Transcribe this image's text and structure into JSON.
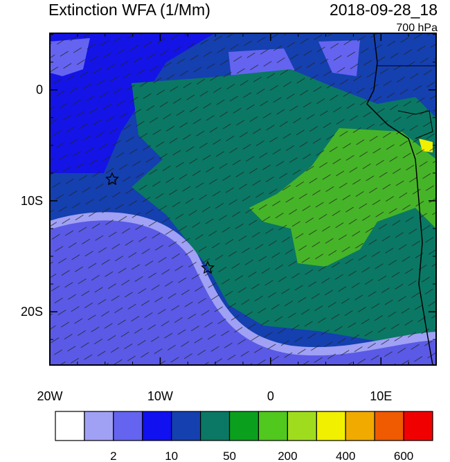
{
  "header": {
    "title": "Extinction WFA (1/Mm)",
    "time": "2018-09-28_18",
    "level": "700 hPa"
  },
  "map": {
    "lon_range": [
      -20,
      15
    ],
    "lat_range": [
      5.1,
      -24.8
    ],
    "lon_ticks": [
      {
        "value": -20,
        "label": "20W"
      },
      {
        "value": -10,
        "label": "10W"
      },
      {
        "value": 0,
        "label": "0"
      },
      {
        "value": 10,
        "label": "10E"
      }
    ],
    "lat_ticks": [
      {
        "value": 0,
        "label": "0"
      },
      {
        "value": -10,
        "label": "10S"
      },
      {
        "value": -20,
        "label": "20S"
      }
    ]
  },
  "colorbar": {
    "colors": [
      "#ffffff",
      "#a0a0f5",
      "#6464f0",
      "#1010f0",
      "#1440b0",
      "#0a7864",
      "#0aa01e",
      "#50c81e",
      "#a0dc1e",
      "#f0f000",
      "#f0aa00",
      "#f05a00",
      "#f00000"
    ],
    "labels": [
      {
        "index": 1,
        "label": "2"
      },
      {
        "index": 3,
        "label": "10"
      },
      {
        "index": 5,
        "label": "50"
      },
      {
        "index": 7,
        "label": "200"
      },
      {
        "index": 9,
        "label": "400"
      },
      {
        "index": 11,
        "label": "600"
      }
    ]
  }
}
